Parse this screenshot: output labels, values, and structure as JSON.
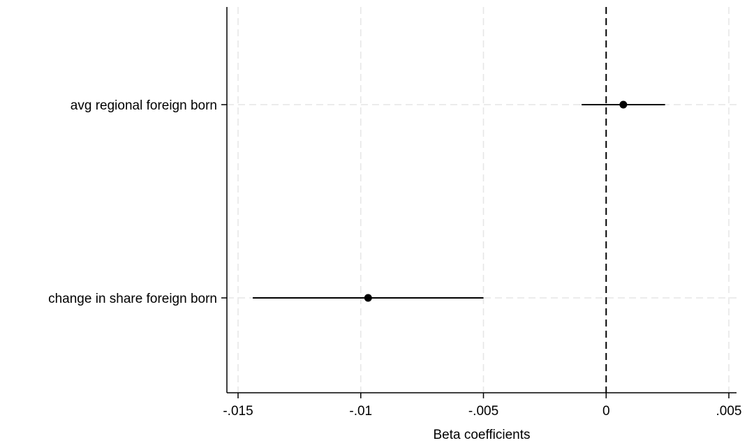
{
  "chart_data": {
    "type": "scatter",
    "subtype": "coefficient-plot",
    "title": "",
    "xlabel": "Beta coefficients",
    "ylabel": "",
    "xlim": [
      -0.0155,
      0.0055
    ],
    "x_ticks": [
      {
        "value": -0.015,
        "label": "-.015"
      },
      {
        "value": -0.01,
        "label": "-.01"
      },
      {
        "value": -0.005,
        "label": "-.005"
      },
      {
        "value": 0,
        "label": "0"
      },
      {
        "value": 0.005,
        "label": ".005"
      }
    ],
    "grid": true,
    "legend": "none",
    "reference_line": {
      "x": 0,
      "style": "dashed"
    },
    "colors": {
      "marker": "#000000",
      "grid": "#e6e6e6",
      "axis": "#000000"
    },
    "categories": [
      "avg regional foreign born",
      "change in share foreign born"
    ],
    "points": [
      {
        "label": "avg regional foreign born",
        "estimate": 0.0007,
        "ci_low": -0.001,
        "ci_high": 0.0024
      },
      {
        "label": "change in share foreign born",
        "estimate": -0.0097,
        "ci_low": -0.0144,
        "ci_high": -0.005
      }
    ]
  }
}
